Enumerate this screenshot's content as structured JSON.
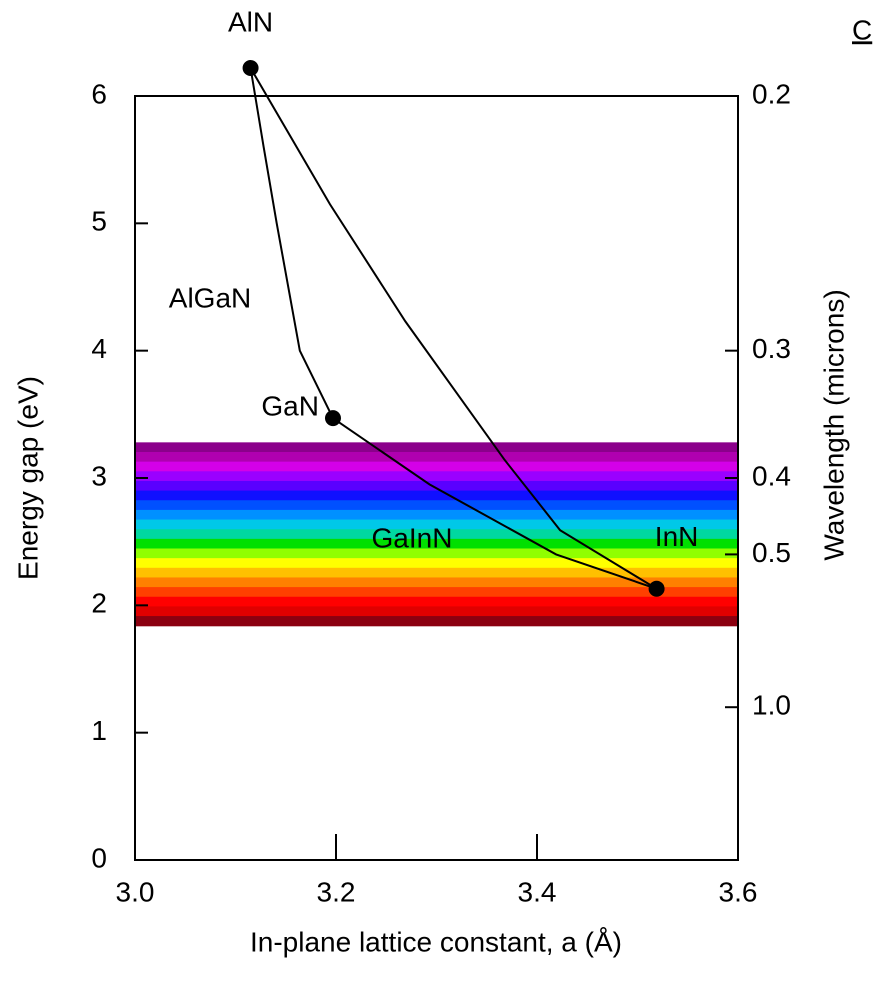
{
  "chart_data": {
    "type": "line",
    "x_label": "In-plane lattice constant, a (Å)",
    "y_label": "Energy gap (eV)",
    "y2_label": "Wavelength (microns)",
    "corner_text": "C",
    "xlim": [
      3.0,
      3.6
    ],
    "xticks": [
      {
        "value": 3.0,
        "label": "3.0"
      },
      3.2,
      3.4,
      3.6
    ],
    "ylim": [
      0,
      6
    ],
    "yticks": [
      0,
      1,
      2,
      3,
      4,
      5,
      6
    ],
    "y2scale": "reciprocal",
    "y2lim": [
      null,
      0.2
    ],
    "y2ticks": [
      0.2,
      0.3,
      0.4,
      0.5,
      {
        "value": 1.0,
        "label": "1.0"
      }
    ],
    "spectrum": {
      "range": [
        1.84,
        3.28
      ],
      "colors": [
        "#8b008b",
        "#b000b0",
        "#d400e8",
        "#9a00ff",
        "#5a00ff",
        "#1010ff",
        "#0050ff",
        "#0090ff",
        "#00c8e8",
        "#00d8a0",
        "#00e000",
        "#90ff00",
        "#ffff00",
        "#ffc000",
        "#ff8000",
        "#ff4000",
        "#ff0000",
        "#e00000",
        "#8b0010"
      ]
    },
    "points": {
      "x": [
        3.115,
        3.197,
        3.519
      ],
      "values": [
        6.22,
        3.47,
        2.13
      ],
      "labels": [
        "AlN",
        "GaN",
        "InN"
      ],
      "color": "#000000"
    },
    "series": [
      {
        "name": "AlGaN",
        "color": "#000000",
        "x": [
          3.115,
          3.128,
          3.141,
          3.164,
          3.197
        ],
        "values": [
          6.22,
          5.6,
          5.0,
          4.0,
          3.47
        ]
      },
      {
        "color": "#000000",
        "x": [
          3.115,
          3.194,
          3.269,
          3.368,
          3.423,
          3.519
        ],
        "values": [
          6.22,
          5.15,
          4.23,
          3.14,
          2.59,
          2.13
        ]
      },
      {
        "name": "GaInN",
        "color": "#000000",
        "x": [
          3.197,
          3.293,
          3.419,
          3.519
        ],
        "values": [
          3.47,
          2.95,
          2.4,
          2.13
        ]
      }
    ]
  }
}
